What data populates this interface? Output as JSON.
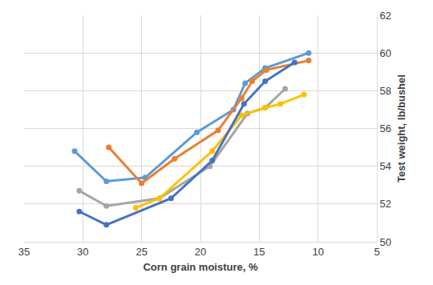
{
  "chart_data": {
    "type": "line",
    "x_label": "Corn grain moisture, %",
    "y_label": "Test weight, lb/bushel",
    "xlim": [
      35,
      5
    ],
    "xticks": [
      35,
      30,
      25,
      20,
      15,
      10,
      5
    ],
    "ylim": [
      50,
      62
    ],
    "yticks": [
      50,
      52,
      54,
      56,
      58,
      60,
      62
    ],
    "grid": true,
    "marker": "circle",
    "series": [
      {
        "color": "#5B9BD5",
        "x": [
          30.7,
          28,
          24.7,
          20.3,
          17.2,
          16.2,
          14.5,
          10.8
        ],
        "values": [
          54.8,
          53.2,
          53.4,
          55.8,
          57.0,
          58.4,
          59.2,
          60.0
        ]
      },
      {
        "color": "#ED7D31",
        "x": [
          27.8,
          25,
          22.2,
          18.5,
          16.5,
          15.6,
          14.4,
          10.8
        ],
        "values": [
          55.0,
          53.1,
          54.4,
          55.9,
          57.6,
          58.5,
          59.1,
          59.6
        ]
      },
      {
        "color": "#A5A5A5",
        "x": [
          30.3,
          28,
          23.5,
          19.2,
          16,
          14.5,
          12.8
        ],
        "values": [
          52.7,
          51.9,
          52.3,
          54.0,
          56.8,
          57.1,
          58.1
        ]
      },
      {
        "color": "#FFC000",
        "x": [
          25.5,
          23.5,
          19,
          16.5,
          14.5,
          13.2,
          11.2
        ],
        "values": [
          51.8,
          52.3,
          54.8,
          56.7,
          57.1,
          57.3,
          57.8
        ]
      },
      {
        "color": "#4472C4",
        "x": [
          30.3,
          28,
          22.5,
          19,
          16.3,
          14.5,
          12
        ],
        "values": [
          51.6,
          50.9,
          52.3,
          54.3,
          57.3,
          58.5,
          59.5
        ]
      }
    ]
  }
}
